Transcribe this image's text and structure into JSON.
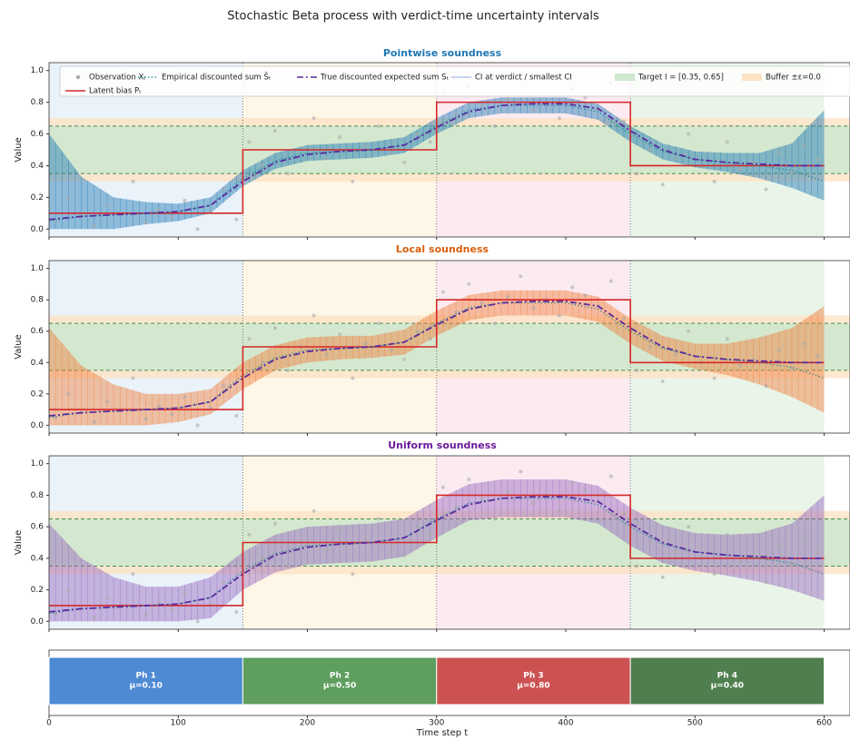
{
  "suptitle": "Stochastic Beta process with verdict-time uncertainty intervals",
  "chart_data": [
    {
      "type": "line",
      "title": "Pointwise soundness",
      "ylabel": "Value",
      "color": "#1f77b4",
      "title_color": "#1f77b4",
      "ylim": [
        -0.05,
        1.05
      ],
      "yticks": [
        {
          "value": 0,
          "label": "0.0"
        },
        0.2,
        0.4,
        0.6,
        0.8,
        {
          "value": 1,
          "label": "1.0"
        }
      ],
      "target": {
        "name": "Target I = [0.35, 0.65]",
        "range": [
          0.35,
          0.65
        ],
        "color": "#cfe8cf"
      },
      "buffer": {
        "name": "Buffer ±ε=0.0",
        "range": [
          0.3,
          0.7
        ],
        "color": "#fde2c4"
      },
      "observations": {
        "name": "Observation Xₜ",
        "color": "#aaaaaa",
        "x": [
          5,
          15,
          25,
          35,
          45,
          55,
          65,
          75,
          85,
          95,
          105,
          115,
          125,
          135,
          145,
          155,
          165,
          175,
          185,
          195,
          205,
          215,
          225,
          235,
          245,
          255,
          265,
          275,
          285,
          295,
          305,
          315,
          325,
          335,
          345,
          355,
          365,
          375,
          385,
          395,
          405,
          415,
          425,
          435,
          445,
          455,
          465,
          475,
          485,
          495,
          505,
          515,
          525,
          535,
          545,
          555,
          565,
          575,
          585,
          595
        ],
        "values": [
          0.05,
          0.2,
          0.08,
          0.02,
          0.15,
          0.1,
          0.3,
          0.04,
          0.12,
          0.07,
          0.18,
          0.0,
          0.11,
          0.25,
          0.06,
          0.55,
          0.4,
          0.62,
          0.35,
          0.5,
          0.7,
          0.45,
          0.58,
          0.3,
          0.52,
          0.65,
          0.48,
          0.42,
          0.6,
          0.55,
          0.85,
          0.72,
          0.9,
          0.78,
          0.65,
          0.82,
          0.95,
          0.75,
          0.8,
          0.7,
          0.88,
          0.83,
          0.76,
          0.92,
          0.68,
          0.35,
          0.5,
          0.28,
          0.45,
          0.6,
          0.4,
          0.3,
          0.55,
          0.38,
          0.42,
          0.25,
          0.48,
          0.36,
          0.52,
          0.44
        ]
      },
      "latent": {
        "name": "Latent bias Pₜ",
        "color": "#d62728",
        "x": [
          0,
          150,
          150,
          300,
          300,
          450,
          450,
          600
        ],
        "values": [
          0.1,
          0.1,
          0.5,
          0.5,
          0.8,
          0.8,
          0.4,
          0.4
        ]
      },
      "x": [
        0,
        25,
        50,
        75,
        100,
        125,
        150,
        175,
        200,
        225,
        250,
        275,
        300,
        325,
        350,
        375,
        400,
        425,
        450,
        475,
        500,
        525,
        550,
        575,
        600
      ],
      "empirical": {
        "name": "Empirical discounted sum Ŝₜ",
        "color": "#1a8a8a",
        "values": [
          0.05,
          0.08,
          0.09,
          0.1,
          0.11,
          0.15,
          0.32,
          0.43,
          0.48,
          0.49,
          0.5,
          0.53,
          0.65,
          0.75,
          0.78,
          0.78,
          0.78,
          0.74,
          0.6,
          0.49,
          0.44,
          0.42,
          0.4,
          0.37,
          0.3
        ]
      },
      "true": {
        "name": "True discounted expected sum Sₜ",
        "color": "#5b2a9e",
        "values": [
          0.06,
          0.08,
          0.09,
          0.1,
          0.11,
          0.15,
          0.3,
          0.42,
          0.47,
          0.49,
          0.5,
          0.53,
          0.64,
          0.74,
          0.78,
          0.79,
          0.79,
          0.76,
          0.62,
          0.5,
          0.44,
          0.42,
          0.41,
          0.4,
          0.4
        ]
      },
      "ci": {
        "name": "CI at verdict / smallest CI",
        "lower": [
          0.0,
          0.0,
          0.0,
          0.03,
          0.05,
          0.1,
          0.27,
          0.38,
          0.43,
          0.44,
          0.45,
          0.48,
          0.6,
          0.7,
          0.73,
          0.73,
          0.73,
          0.69,
          0.55,
          0.44,
          0.39,
          0.36,
          0.32,
          0.26,
          0.18
        ],
        "upper": [
          0.6,
          0.33,
          0.2,
          0.17,
          0.16,
          0.2,
          0.37,
          0.48,
          0.53,
          0.54,
          0.55,
          0.58,
          0.7,
          0.8,
          0.83,
          0.83,
          0.83,
          0.79,
          0.65,
          0.54,
          0.49,
          0.48,
          0.48,
          0.54,
          0.75
        ]
      }
    },
    {
      "type": "line",
      "title": "Local soundness",
      "ylabel": "Value",
      "color": "#f07f3c",
      "title_color": "#d95f0e",
      "ci": {
        "lower": [
          0.0,
          0.0,
          0.0,
          0.0,
          0.02,
          0.07,
          0.23,
          0.35,
          0.4,
          0.42,
          0.43,
          0.45,
          0.57,
          0.67,
          0.7,
          0.7,
          0.7,
          0.66,
          0.52,
          0.41,
          0.36,
          0.32,
          0.26,
          0.18,
          0.08
        ],
        "upper": [
          0.62,
          0.38,
          0.26,
          0.2,
          0.2,
          0.23,
          0.4,
          0.51,
          0.56,
          0.57,
          0.57,
          0.61,
          0.73,
          0.83,
          0.86,
          0.86,
          0.86,
          0.82,
          0.68,
          0.57,
          0.52,
          0.52,
          0.56,
          0.62,
          0.76
        ]
      }
    },
    {
      "type": "line",
      "title": "Uniform soundness",
      "ylabel": "Value",
      "color": "#9467bd",
      "title_color": "#6a1b9a",
      "ci": {
        "lower": [
          0.0,
          0.0,
          0.0,
          0.0,
          0.0,
          0.02,
          0.2,
          0.31,
          0.36,
          0.37,
          0.38,
          0.41,
          0.53,
          0.64,
          0.66,
          0.66,
          0.66,
          0.62,
          0.48,
          0.37,
          0.32,
          0.29,
          0.25,
          0.2,
          0.13
        ],
        "upper": [
          0.62,
          0.4,
          0.28,
          0.22,
          0.22,
          0.28,
          0.44,
          0.55,
          0.6,
          0.61,
          0.62,
          0.65,
          0.77,
          0.87,
          0.9,
          0.9,
          0.9,
          0.86,
          0.72,
          0.61,
          0.56,
          0.55,
          0.56,
          0.62,
          0.8
        ]
      }
    },
    {
      "type": "timeline",
      "xlabel": "Time step  t",
      "xlim": [
        0,
        620
      ],
      "xticks": [
        0,
        100,
        200,
        300,
        400,
        500,
        600
      ],
      "categories": [
        "Ph 1",
        "Ph 2",
        "Ph 3",
        "Ph 4"
      ],
      "starts": [
        0,
        150,
        300,
        450
      ],
      "ends": [
        150,
        300,
        450,
        600
      ],
      "values": [
        0.1,
        0.5,
        0.8,
        0.4
      ],
      "value_labels": [
        "μ=0.10",
        "μ=0.50",
        "μ=0.80",
        "μ=0.40"
      ],
      "colors": [
        "#4e8ad4",
        "#5e9e5e",
        "#cc5252",
        "#4f7f4f"
      ],
      "shade_colors": [
        "#dce9f7",
        "#fdf1d8",
        "#f8dde8",
        "#dcefdc"
      ]
    }
  ]
}
